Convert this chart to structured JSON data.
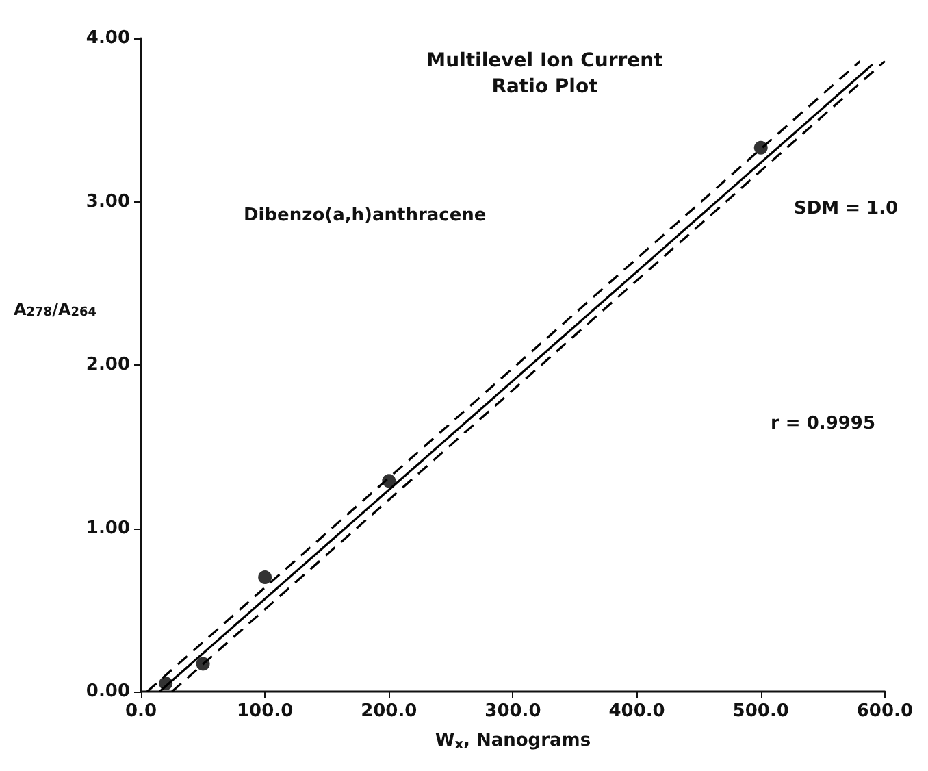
{
  "chart_data": {
    "type": "scatter",
    "title": "Multilevel Ion Current\nRatio Plot",
    "xlabel": "W$_{x}$, Nanograms",
    "ylabel": "A$_{278}$/A$_{264}$",
    "annotations": [
      "Dibenzo(a,h)anthracene",
      "SDM = 1.0",
      "r = 0.9995"
    ],
    "x": [
      20,
      50,
      100,
      200,
      500
    ],
    "series": [
      {
        "color": "#000000",
        "marker": "circle",
        "values": [
          0.05,
          0.17,
          0.7,
          1.29,
          3.33
        ]
      },
      {
        "type": "line",
        "color": "#000000",
        "line_style": "solid",
        "marker": "none",
        "x": [
          15,
          590
        ],
        "values": [
          0,
          3.84
        ]
      },
      {
        "type": "line",
        "color": "#000000",
        "line_style": "dashed",
        "marker": "none",
        "x": [
          5,
          580
        ],
        "values": [
          0,
          3.86
        ]
      },
      {
        "type": "line",
        "color": "#000000",
        "line_style": "dashed",
        "marker": "none",
        "x": [
          25,
          600
        ],
        "values": [
          0,
          3.86
        ]
      }
    ],
    "xlim": [
      0,
      600
    ],
    "ylim": [
      0,
      4
    ],
    "xticks": [
      {
        "value": 0,
        "label": "0.0"
      },
      {
        "value": 100,
        "label": "100.0"
      },
      {
        "value": 200,
        "label": "200.0"
      },
      {
        "value": 300,
        "label": "300.0"
      },
      {
        "value": 400,
        "label": "400.0"
      },
      {
        "value": 500,
        "label": "500.0"
      },
      {
        "value": 600,
        "label": "600.0"
      }
    ],
    "yticks": [
      {
        "value": 0,
        "label": "0.00"
      },
      {
        "value": 1,
        "label": "1.00"
      },
      {
        "value": 2,
        "label": "2.00"
      },
      {
        "value": 3,
        "label": "3.00"
      },
      {
        "value": 4,
        "label": "4.00"
      }
    ],
    "grid": false
  }
}
